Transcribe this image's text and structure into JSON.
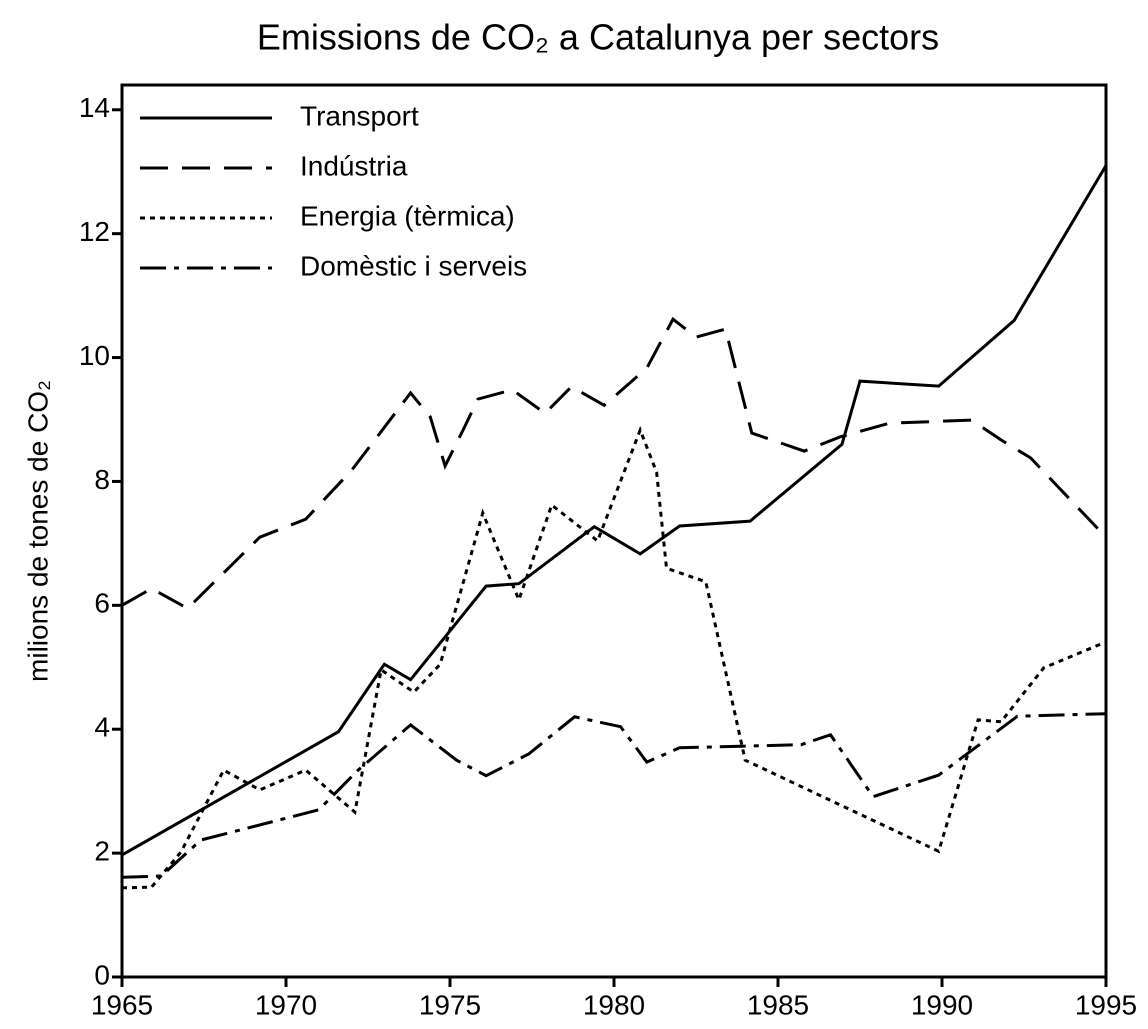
{
  "chart_data": {
    "type": "line",
    "title": "Emissions de CO₂  a Catalunya per sectors",
    "y_label": "milions de tones de CO₂",
    "xlim": [
      1965,
      1995
    ],
    "xticks": [
      1965,
      1970,
      1975,
      1980,
      1985,
      1990,
      1995
    ],
    "ylim": [
      0,
      14.4
    ],
    "yticks": [
      0,
      2,
      4,
      6,
      8,
      10,
      12,
      14
    ],
    "grid": false,
    "legend": "upper left",
    "series": [
      {
        "name": "Transport",
        "color": "#000000",
        "dash": "solid",
        "x": [
          1965,
          1971.6,
          1973,
          1973.8,
          1976.1,
          1977.1,
          1979.4,
          1980.8,
          1982,
          1984.15,
          1986.95,
          1987.5,
          1989.9,
          1992.2,
          1995
        ],
        "values": [
          1.97,
          3.96,
          5.05,
          4.8,
          6.31,
          6.35,
          7.27,
          6.83,
          7.28,
          7.36,
          8.6,
          9.62,
          9.54,
          10.6,
          13.1
        ]
      },
      {
        "name": "Indústria",
        "color": "#000000",
        "dash": "dashed",
        "x": [
          1965,
          1965.9,
          1967,
          1969.2,
          1970.6,
          1972,
          1973.8,
          1974.4,
          1974.85,
          1975.4,
          1975.85,
          1976.9,
          1977.9,
          1978.7,
          1979.7,
          1981,
          1981.8,
          1982.5,
          1983.4,
          1984.2,
          1985.8,
          1986.9,
          1988.4,
          1990.9,
          1991.8,
          1992.7,
          1995
        ],
        "values": [
          6.0,
          6.27,
          5.95,
          7.1,
          7.39,
          8.18,
          9.43,
          9.04,
          8.25,
          8.83,
          9.33,
          9.48,
          9.1,
          9.53,
          9.23,
          9.83,
          10.62,
          10.33,
          10.46,
          8.78,
          8.49,
          8.72,
          8.94,
          8.99,
          8.67,
          8.38,
          7.1
        ]
      },
      {
        "name": "Energia (tèrmica)",
        "color": "#000000",
        "dash": "dotted",
        "x": [
          1965,
          1965.9,
          1966.8,
          1968.1,
          1969.2,
          1970.6,
          1972.1,
          1972.9,
          1973.9,
          1974.7,
          1976,
          1977.1,
          1978.1,
          1979.5,
          1980.8,
          1981.3,
          1981.6,
          1982.8,
          1984,
          1989.9,
          1991.1,
          1991.8,
          1993.1,
          1995
        ],
        "values": [
          1.44,
          1.45,
          2.02,
          3.34,
          3.02,
          3.34,
          2.66,
          4.96,
          4.6,
          5.05,
          7.49,
          6.09,
          7.62,
          7.04,
          8.83,
          8.15,
          6.6,
          6.38,
          3.5,
          2.03,
          4.15,
          4.12,
          4.99,
          5.41
        ]
      },
      {
        "name": "Domèstic i serveis",
        "color": "#000000",
        "dash": "dashdot",
        "x": [
          1965,
          1966.2,
          1967.4,
          1971,
          1972.2,
          1973.8,
          1975.2,
          1976.1,
          1977.4,
          1978.8,
          1980.2,
          1981,
          1982,
          1985.7,
          1986.6,
          1987.9,
          1989.9,
          1992.3,
          1995
        ],
        "values": [
          1.61,
          1.63,
          2.21,
          2.7,
          3.34,
          4.07,
          3.5,
          3.25,
          3.6,
          4.2,
          4.04,
          3.47,
          3.7,
          3.75,
          3.91,
          2.91,
          3.26,
          4.21,
          4.25
        ]
      }
    ]
  }
}
